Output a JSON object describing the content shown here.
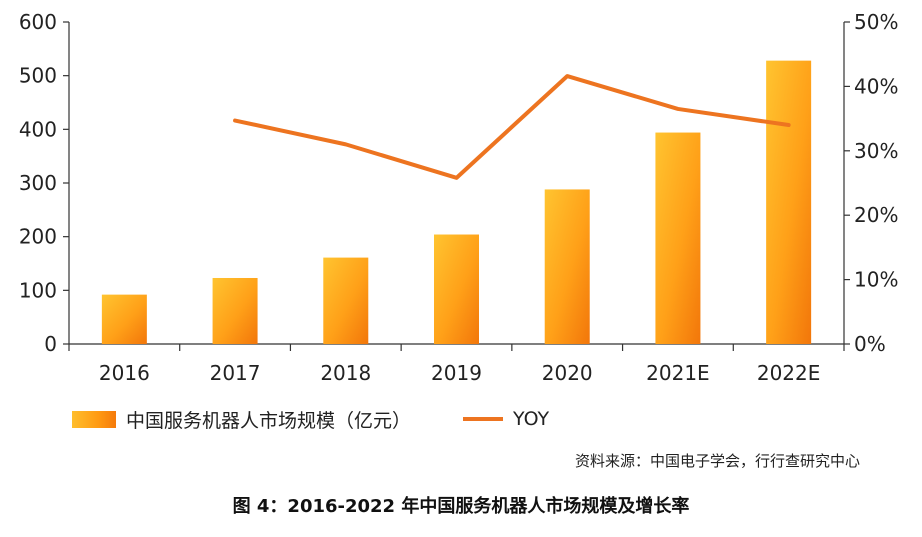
{
  "chart_data": {
    "type": "bar",
    "categories": [
      "2016",
      "2017",
      "2018",
      "2019",
      "2020",
      "2021E",
      "2022E"
    ],
    "series": [
      {
        "name": "中国服务机器人市场规模（亿元）",
        "type": "bar",
        "axis": "left",
        "values": [
          92,
          123,
          161,
          204,
          288,
          394,
          528
        ]
      },
      {
        "name": "YOY",
        "type": "line",
        "axis": "right",
        "values": [
          null,
          0.347,
          0.31,
          0.258,
          0.416,
          0.365,
          0.34
        ]
      }
    ],
    "y_left": {
      "ticks": [
        "0",
        "100",
        "200",
        "300",
        "400",
        "500",
        "600"
      ],
      "lim": [
        0,
        600
      ]
    },
    "y_right": {
      "ticks": [
        "0%",
        "10%",
        "20%",
        "30%",
        "40%",
        "50%"
      ],
      "lim": [
        0,
        0.5
      ]
    },
    "legend_position": "bottom-left",
    "colors": {
      "bar_light": "#FFC02E",
      "bar_dark": "#F57A0A",
      "line": "#ED7420",
      "axis": "#333333"
    }
  },
  "source": "资料来源：中国电子学会，行行查研究中心",
  "caption": "图 4：2016-2022 年中国服务机器人市场规模及增长率"
}
